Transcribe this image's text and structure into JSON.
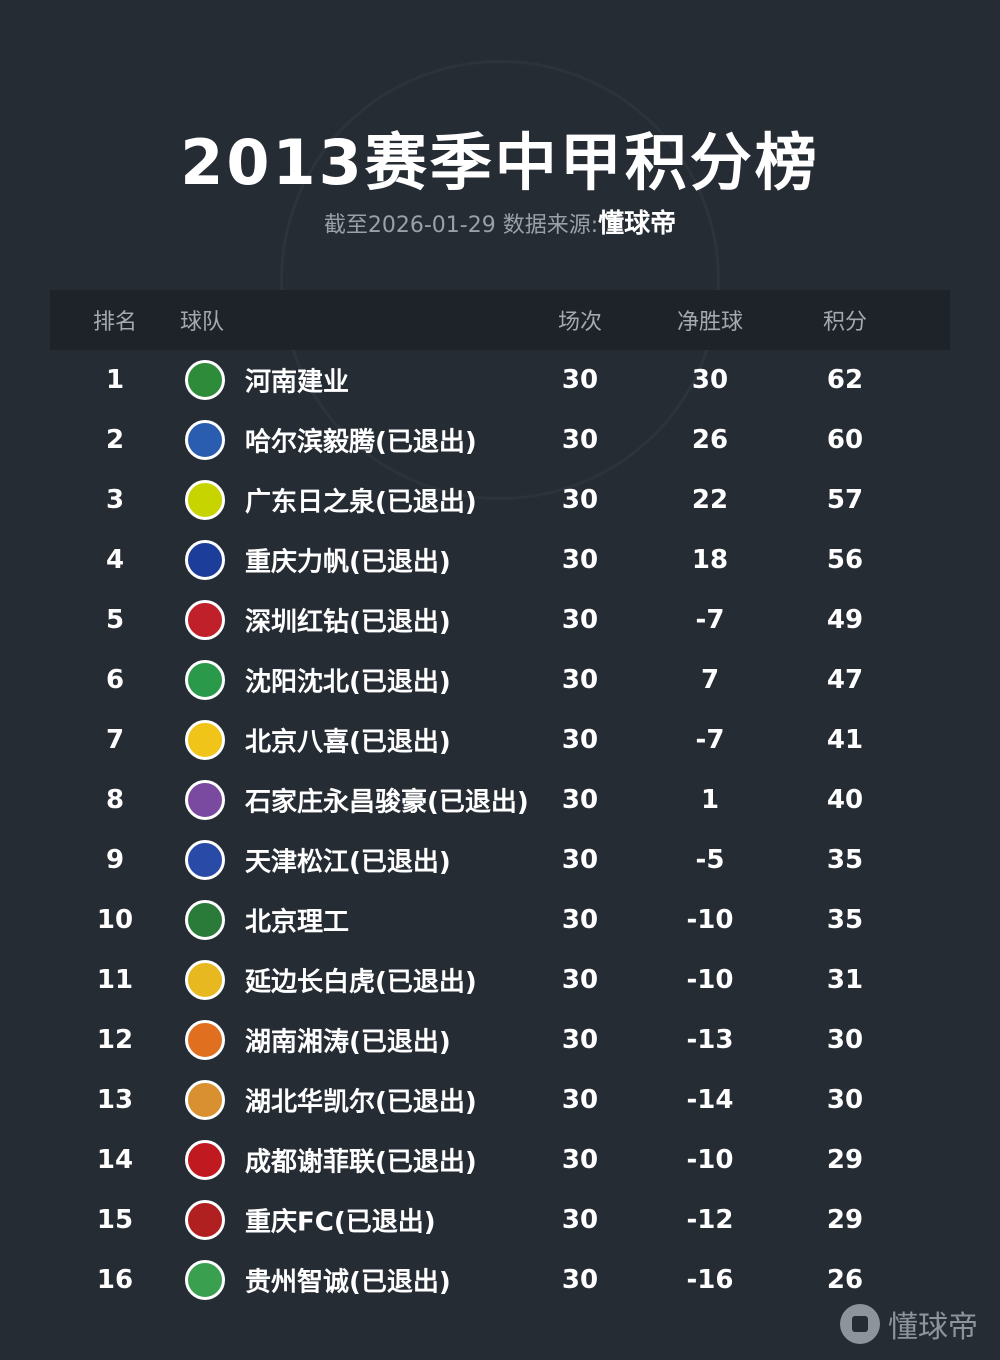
{
  "title": "2013赛季中甲积分榜",
  "subtitle": {
    "prefix": "截至2026-01-29 数据来源:",
    "source": "懂球帝"
  },
  "headers": {
    "rank": "排名",
    "team": "球队",
    "played": "场次",
    "gd": "净胜球",
    "points": "积分"
  },
  "rows": [
    {
      "rank": "1",
      "team": "河南建业",
      "played": "30",
      "gd": "30",
      "points": "62",
      "color": "#2e8b3a"
    },
    {
      "rank": "2",
      "team": "哈尔滨毅腾(已退出)",
      "played": "30",
      "gd": "26",
      "points": "60",
      "color": "#2a5db0"
    },
    {
      "rank": "3",
      "team": "广东日之泉(已退出)",
      "played": "30",
      "gd": "22",
      "points": "57",
      "color": "#c8d400"
    },
    {
      "rank": "4",
      "team": "重庆力帆(已退出)",
      "played": "30",
      "gd": "18",
      "points": "56",
      "color": "#1d3d9a"
    },
    {
      "rank": "5",
      "team": "深圳红钻(已退出)",
      "played": "30",
      "gd": "-7",
      "points": "49",
      "color": "#c0202a"
    },
    {
      "rank": "6",
      "team": "沈阳沈北(已退出)",
      "played": "30",
      "gd": "7",
      "points": "47",
      "color": "#2a9a4a"
    },
    {
      "rank": "7",
      "team": "北京八喜(已退出)",
      "played": "30",
      "gd": "-7",
      "points": "41",
      "color": "#f0c419"
    },
    {
      "rank": "8",
      "team": "石家庄永昌骏豪(已退出)",
      "played": "30",
      "gd": "1",
      "points": "40",
      "color": "#7a4aa0"
    },
    {
      "rank": "9",
      "team": "天津松江(已退出)",
      "played": "30",
      "gd": "-5",
      "points": "35",
      "color": "#2a4aa8"
    },
    {
      "rank": "10",
      "team": "北京理工",
      "played": "30",
      "gd": "-10",
      "points": "35",
      "color": "#2a7a3a"
    },
    {
      "rank": "11",
      "team": "延边长白虎(已退出)",
      "played": "30",
      "gd": "-10",
      "points": "31",
      "color": "#e8b820"
    },
    {
      "rank": "12",
      "team": "湖南湘涛(已退出)",
      "played": "30",
      "gd": "-13",
      "points": "30",
      "color": "#e07020"
    },
    {
      "rank": "13",
      "team": "湖北华凯尔(已退出)",
      "played": "30",
      "gd": "-14",
      "points": "30",
      "color": "#d89030"
    },
    {
      "rank": "14",
      "team": "成都谢菲联(已退出)",
      "played": "30",
      "gd": "-10",
      "points": "29",
      "color": "#c01a20"
    },
    {
      "rank": "15",
      "team": "重庆FC(已退出)",
      "played": "30",
      "gd": "-12",
      "points": "29",
      "color": "#b02020"
    },
    {
      "rank": "16",
      "team": "贵州智诚(已退出)",
      "played": "30",
      "gd": "-16",
      "points": "26",
      "color": "#3aa050"
    }
  ],
  "watermark": "懂球帝"
}
